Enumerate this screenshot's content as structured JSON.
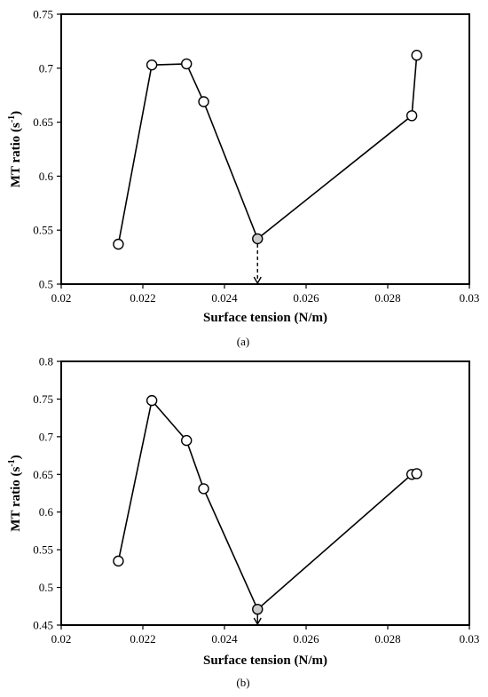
{
  "chart_data": [
    {
      "type": "line",
      "marker": "circle",
      "panel_label": "(a)",
      "title": "",
      "xlabel": "Surface tension (N/m)",
      "ylabel_main": "MT ratio (s",
      "ylabel_sup": "-1",
      "ylabel_end": ")",
      "xlim": [
        0.02,
        0.03
      ],
      "ylim": [
        0.5,
        0.75
      ],
      "xticks": [
        "0.02",
        "0.022",
        "0.024",
        "0.026",
        "0.028",
        "0.03"
      ],
      "yticks": [
        "0.5",
        "0.55",
        "0.6",
        "0.65",
        "0.7",
        "0.75"
      ],
      "grid": false,
      "series": [
        {
          "x": [
            0.0214,
            0.02222,
            0.02307,
            0.02349,
            0.02481,
            0.02859,
            0.02871
          ],
          "y": [
            0.537,
            0.703,
            0.704,
            0.669,
            0.542,
            0.656,
            0.712
          ]
        }
      ],
      "highlight": {
        "x": 0.02481,
        "y": 0.542,
        "fill": "#cccccc",
        "arrow": "dashed-down"
      }
    },
    {
      "type": "line",
      "marker": "circle",
      "panel_label": "(b)",
      "title": "",
      "xlabel": "Surface tension (N/m)",
      "ylabel_main": "MT ratio (s",
      "ylabel_sup": "-1",
      "ylabel_end": ")",
      "xlim": [
        0.02,
        0.03
      ],
      "ylim": [
        0.45,
        0.8
      ],
      "xticks": [
        "0.02",
        "0.022",
        "0.024",
        "0.026",
        "0.028",
        "0.03"
      ],
      "yticks": [
        "0.45",
        "0.5",
        "0.55",
        "0.6",
        "0.65",
        "0.7",
        "0.75",
        "0.8"
      ],
      "grid": false,
      "series": [
        {
          "x": [
            0.0214,
            0.02222,
            0.02307,
            0.02349,
            0.02481,
            0.02859,
            0.02871
          ],
          "y": [
            0.535,
            0.748,
            0.695,
            0.631,
            0.471,
            0.65,
            0.651
          ]
        }
      ],
      "highlight": {
        "x": 0.02481,
        "y": 0.471,
        "fill": "#cccccc",
        "arrow": "solid-down"
      }
    }
  ]
}
